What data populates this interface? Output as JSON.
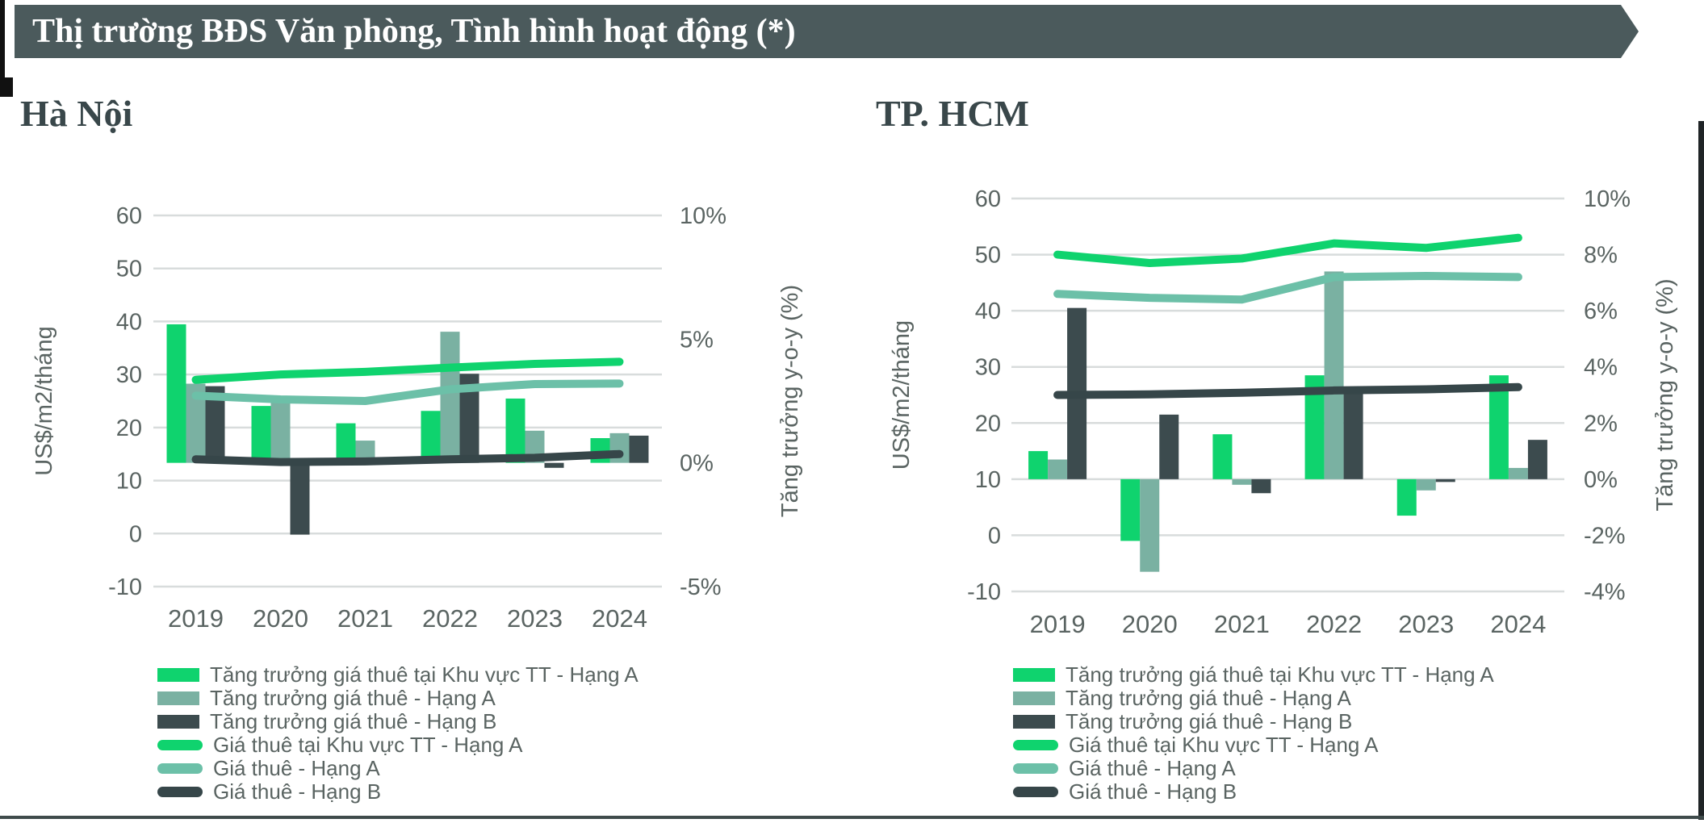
{
  "banner": {
    "title": "Thị trường BĐS Văn phòng, Tình hình hoạt động (*)",
    "bg_color": "#4b5a5c",
    "text_color": "#ffffff"
  },
  "colors": {
    "bar_bright_green": "#0fd36e",
    "bar_muted_green": "#7ab1a2",
    "bar_dark_slate": "#3c4b4e",
    "line_bright_green": "#0fd36e",
    "line_muted_green": "#6cc0a8",
    "line_dark_slate": "#364649",
    "gridline": "#d8dcdc",
    "tick_text": "#5a6462",
    "heading_text": "#39474a"
  },
  "legend_items": [
    {
      "label": "Tăng trưởng giá thuê tại Khu vực TT - Hạng A",
      "swatch": "bar",
      "color_key": "bar_bright_green"
    },
    {
      "label": "Tăng trưởng giá thuê - Hạng A",
      "swatch": "bar",
      "color_key": "bar_muted_green"
    },
    {
      "label": "Tăng trưởng giá thuê - Hạng B",
      "swatch": "bar",
      "color_key": "bar_dark_slate"
    },
    {
      "label": "Giá thuê tại Khu vực TT - Hạng A",
      "swatch": "line",
      "color_key": "line_bright_green"
    },
    {
      "label": "Giá thuê - Hạng A",
      "swatch": "line",
      "color_key": "line_muted_green"
    },
    {
      "label": "Giá thuê - Hạng B",
      "swatch": "line",
      "color_key": "line_dark_slate"
    }
  ],
  "chart_data": [
    {
      "type": "bar",
      "title": "Hà Nội",
      "categories": [
        "2019",
        "2020",
        "2021",
        "2022",
        "2023",
        "2024"
      ],
      "left_axis": {
        "title": "US$/m2/tháng",
        "min": -10,
        "max": 60,
        "ticks": [
          60,
          50,
          40,
          30,
          20,
          10,
          0,
          -10
        ]
      },
      "right_axis": {
        "title": "Tăng trưởng y-o-y (%)",
        "min": -5,
        "max": 10,
        "ticks": [
          {
            "value": 10,
            "label": "10%"
          },
          {
            "value": 5,
            "label": "5%"
          },
          {
            "value": 0,
            "label": "0%"
          },
          {
            "value": -5,
            "label": "-5%"
          }
        ]
      },
      "bar_series": [
        {
          "name": "Tăng trưởng giá thuê tại Khu vực TT - Hạng A",
          "axis": "right",
          "unit": "%",
          "color_key": "bar_bright_green",
          "values": [
            5.6,
            2.3,
            1.6,
            2.1,
            2.6,
            1.0
          ]
        },
        {
          "name": "Tăng trưởng giá thuê - Hạng A",
          "axis": "right",
          "unit": "%",
          "color_key": "bar_muted_green",
          "values": [
            3.2,
            2.7,
            0.9,
            5.3,
            1.3,
            1.2
          ]
        },
        {
          "name": "Tăng trưởng giá thuê - Hạng B",
          "axis": "right",
          "unit": "%",
          "color_key": "bar_dark_slate",
          "values": [
            3.1,
            -2.9,
            0.05,
            3.6,
            -0.2,
            1.1
          ]
        }
      ],
      "line_series": [
        {
          "name": "Giá thuê tại Khu vực TT - Hạng A",
          "axis": "left",
          "unit": "US$/m2/tháng",
          "color_key": "line_bright_green",
          "values": [
            29.0,
            30.0,
            30.5,
            31.3,
            32.0,
            32.4
          ]
        },
        {
          "name": "Giá thuê - Hạng A",
          "axis": "left",
          "unit": "US$/m2/tháng",
          "color_key": "line_muted_green",
          "values": [
            26.0,
            25.3,
            25.0,
            27.2,
            28.2,
            28.3
          ]
        },
        {
          "name": "Giá thuê - Hạng B",
          "axis": "left",
          "unit": "US$/m2/tháng",
          "color_key": "line_dark_slate",
          "values": [
            14.0,
            13.5,
            13.6,
            14.0,
            14.3,
            15.0
          ]
        }
      ],
      "grid": true,
      "legend_position": "bottom"
    },
    {
      "type": "bar",
      "title": "TP. HCM",
      "categories": [
        "2019",
        "2020",
        "2021",
        "2022",
        "2023",
        "2024"
      ],
      "left_axis": {
        "title": "US$/m2/tháng",
        "min": -10,
        "max": 60,
        "ticks": [
          60,
          50,
          40,
          30,
          20,
          10,
          0,
          -10
        ]
      },
      "right_axis": {
        "title": "Tăng trưởng y-o-y (%)",
        "min": -4,
        "max": 10,
        "ticks": [
          {
            "value": 10,
            "label": "10%"
          },
          {
            "value": 8,
            "label": "8%"
          },
          {
            "value": 6,
            "label": "6%"
          },
          {
            "value": 4,
            "label": "4%"
          },
          {
            "value": 2,
            "label": "2%"
          },
          {
            "value": 0,
            "label": "0%"
          },
          {
            "value": -2,
            "label": "-2%"
          },
          {
            "value": -4,
            "label": "-4%"
          }
        ]
      },
      "bar_series": [
        {
          "name": "Tăng trưởng giá thuê tại Khu vực TT - Hạng A",
          "axis": "right",
          "unit": "%",
          "color_key": "bar_bright_green",
          "values": [
            1.0,
            -2.2,
            1.6,
            3.7,
            -1.3,
            3.7
          ]
        },
        {
          "name": "Tăng trưởng giá thuê - Hạng A",
          "axis": "right",
          "unit": "%",
          "color_key": "bar_muted_green",
          "values": [
            0.7,
            -3.3,
            -0.2,
            7.4,
            -0.4,
            0.4
          ]
        },
        {
          "name": "Tăng trưởng giá thuê - Hạng B",
          "axis": "right",
          "unit": "%",
          "color_key": "bar_dark_slate",
          "values": [
            6.1,
            2.3,
            -0.5,
            3.1,
            -0.1,
            1.4
          ]
        }
      ],
      "line_series": [
        {
          "name": "Giá thuê tại Khu vực TT - Hạng A",
          "axis": "left",
          "unit": "US$/m2/tháng",
          "color_key": "line_bright_green",
          "values": [
            50.0,
            48.5,
            49.3,
            52.0,
            51.2,
            53.0
          ]
        },
        {
          "name": "Giá thuê - Hạng A",
          "axis": "left",
          "unit": "US$/m2/tháng",
          "color_key": "line_muted_green",
          "values": [
            43.0,
            42.3,
            42.0,
            46.0,
            46.2,
            46.0
          ]
        },
        {
          "name": "Giá thuê - Hạng B",
          "axis": "left",
          "unit": "US$/m2/tháng",
          "color_key": "line_dark_slate",
          "values": [
            25.0,
            25.1,
            25.4,
            25.8,
            26.0,
            26.4
          ]
        }
      ],
      "grid": true,
      "legend_position": "bottom"
    }
  ]
}
